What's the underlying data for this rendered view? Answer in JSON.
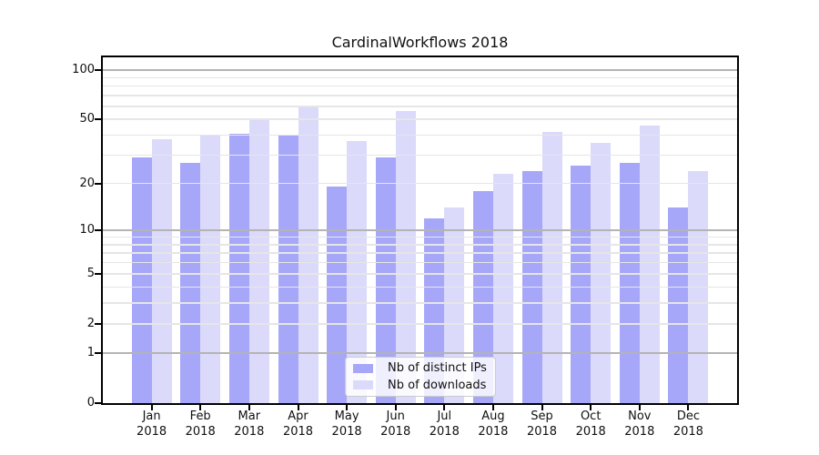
{
  "title": "CardinalWorkflows 2018",
  "chart_data": {
    "type": "bar",
    "title": "CardinalWorkflows 2018",
    "categories": [
      "Jan",
      "Feb",
      "Mar",
      "Apr",
      "May",
      "Jun",
      "Jul",
      "Aug",
      "Sep",
      "Oct",
      "Nov",
      "Dec"
    ],
    "category_year": "2018",
    "series": [
      {
        "name": "Nb of distinct IPs",
        "color": "#a7a7f9",
        "values": [
          29,
          27,
          41,
          40,
          19,
          29,
          12,
          18,
          24,
          26,
          27,
          14
        ]
      },
      {
        "name": "Nb of downloads",
        "color": "#dbdafa",
        "values": [
          38,
          40,
          51,
          59,
          37,
          56,
          14,
          23,
          42,
          36,
          46,
          24
        ]
      }
    ],
    "yscale": "log1p",
    "ylim": [
      0,
      123
    ],
    "yticks": [
      0,
      1,
      2,
      5,
      10,
      20,
      50,
      100
    ],
    "ytick_labels": [
      "0",
      "1",
      "2",
      "5",
      "10",
      "20",
      "50",
      "100"
    ],
    "grid": {
      "major_values": [
        1,
        10,
        100
      ],
      "minor_values": [
        2,
        3,
        4,
        5,
        6,
        7,
        8,
        9,
        20,
        30,
        40,
        50,
        60,
        70,
        80,
        90
      ],
      "major_color": "#b4b4b4",
      "minor_color": "#e6e6e6"
    },
    "legend_position": "lower center",
    "xlabel": "",
    "ylabel": ""
  },
  "colors": {
    "background": "#ffffff",
    "spine": "#000000",
    "bar_distinct_ips": "#a7a7f9",
    "bar_downloads": "#dbdafa",
    "legend_border": "#cbcbcb",
    "legend_background": "rgba(255,255,255,0.82)"
  }
}
